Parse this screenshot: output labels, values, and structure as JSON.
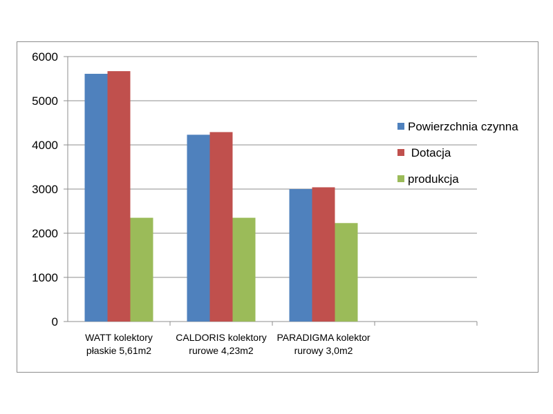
{
  "chart_data": {
    "type": "bar",
    "categories": [
      [
        "WATT kolektory",
        "płaskie 5,61m2"
      ],
      [
        "CALDORIS kolektory",
        "rurowe 4,23m2"
      ],
      [
        "PARADIGMA kolektor",
        "rurowy 3,0m2"
      ],
      [
        "",
        ""
      ]
    ],
    "series": [
      {
        "name": "Powierzchnia czynna",
        "color": "#4f81bd",
        "values": [
          5610,
          4230,
          3000,
          null
        ]
      },
      {
        "name": " Dotacja",
        "color": "#c0504d",
        "values": [
          5670,
          4290,
          3040,
          null
        ]
      },
      {
        "name": "produkcja",
        "color": "#9bbb59",
        "values": [
          2350,
          2350,
          2230,
          null
        ]
      }
    ],
    "yticks": [
      "0",
      "1000",
      "2000",
      "3000",
      "4000",
      "5000",
      "6000"
    ],
    "ylim": [
      0,
      6000
    ],
    "grid": true,
    "legend_position": "right"
  }
}
